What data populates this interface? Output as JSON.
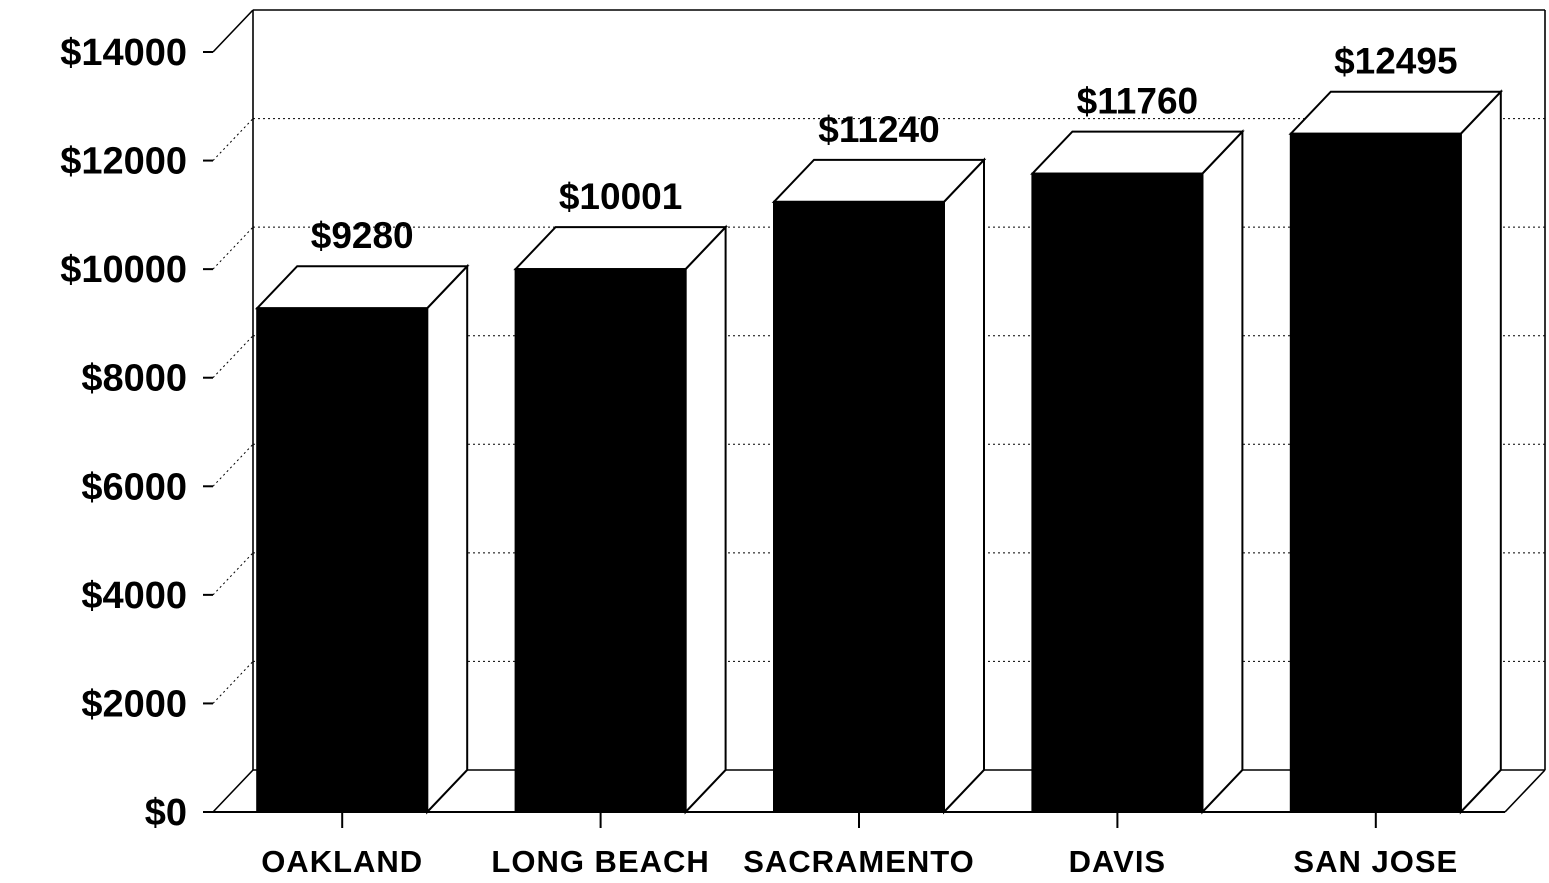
{
  "chart_data": {
    "type": "bar",
    "style": "3d",
    "categories": [
      "OAKLAND",
      "LONG BEACH",
      "SACRAMENTO",
      "DAVIS",
      "SAN JOSE"
    ],
    "values": [
      9280,
      10001,
      11240,
      11760,
      12495
    ],
    "data_labels": [
      "$9280",
      "$10001",
      "$11240",
      "$11760",
      "$12495"
    ],
    "y_ticks": [
      "$0",
      "$2000",
      "$4000",
      "$6000",
      "$8000",
      "$10000",
      "$12000",
      "$14000"
    ],
    "ylim": [
      0,
      14000
    ],
    "title": "",
    "xlabel": "",
    "ylabel": "",
    "grid": true,
    "bar_color": "#000000",
    "side_color": "#ffffff"
  }
}
